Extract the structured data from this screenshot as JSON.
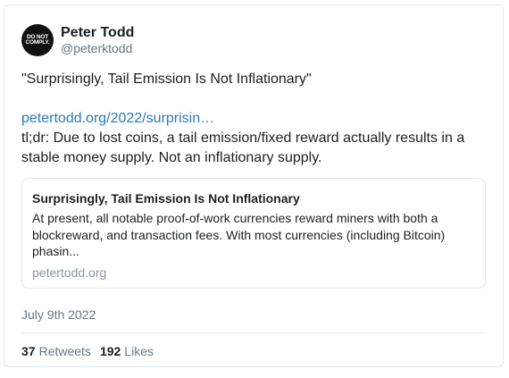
{
  "author": {
    "display_name": "Peter Todd",
    "handle": "@peterktodd",
    "avatar_line1": "DO NOT",
    "avatar_line2": "COMPLY."
  },
  "tweet": {
    "title_line": "\"Surprisingly, Tail Emission Is Not Inflationary\"",
    "link_text": "petertodd.org/2022/surprisin…",
    "body_line1": "tl;dr: Due to lost coins, a tail emission/fixed reward actually results in a",
    "body_line2": "stable money supply. Not an inflationary supply."
  },
  "link_card": {
    "title": "Surprisingly, Tail Emission Is Not Inflationary",
    "description": "At present, all notable proof-of-work currencies reward miners with both a blockreward, and transaction fees. With most currencies (including Bitcoin) phasin...",
    "domain": "petertodd.org"
  },
  "date": "July 9th 2022",
  "stats": {
    "retweets_count": "37",
    "retweets_label": "Retweets",
    "likes_count": "192",
    "likes_label": "Likes"
  },
  "colors": {
    "link": "#2b7bb9",
    "text": "#1c2022",
    "muted": "#697882",
    "border": "#e1e8ed"
  }
}
